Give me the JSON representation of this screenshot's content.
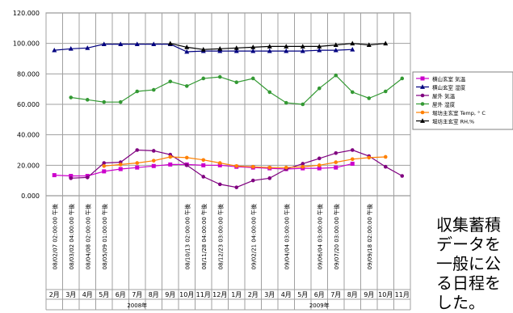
{
  "chart_data": {
    "type": "line",
    "ylim": [
      0,
      120
    ],
    "y_ticks": [
      "0.000",
      "20.000",
      "40.000",
      "60.000",
      "80.000",
      "100.000",
      "120.000"
    ],
    "grid": true,
    "legend_position": "right",
    "months": [
      "2月",
      "3月",
      "4月",
      "5月",
      "6月",
      "7月",
      "8月",
      "9月",
      "10月",
      "11月",
      "12月",
      "1月",
      "2月",
      "3月",
      "4月",
      "5月",
      "6月",
      "7月",
      "8月",
      "9月",
      "10月",
      "11月"
    ],
    "years": [
      {
        "label": "2008年",
        "start_index": 0,
        "end_index": 10
      },
      {
        "label": "2009年",
        "start_index": 11,
        "end_index": 21
      }
    ],
    "date_labels": [
      {
        "index": 0,
        "text": "08/02/07 02:00:00 午後"
      },
      {
        "index": 1,
        "text": "08/03/02 04:00:00 午後"
      },
      {
        "index": 2,
        "text": "08/04/08 02:00:00 午後"
      },
      {
        "index": 3,
        "text": "08/05/09 01:00:00 午後"
      },
      {
        "index": 8,
        "text": "08/10/13 02:00:00 午後"
      },
      {
        "index": 9,
        "text": "08/11/28 04:00:00 午後"
      },
      {
        "index": 10,
        "text": "08/12/23 03:00:00 午後"
      },
      {
        "index": 12,
        "text": "09/02/21 04:00:00 午後"
      },
      {
        "index": 14,
        "text": "09/04/04 03:00:00 午後"
      },
      {
        "index": 16,
        "text": "09/06/04 03:00:00 午後"
      },
      {
        "index": 17,
        "text": "09/07/20 03:00:00 午後"
      },
      {
        "index": 19,
        "text": "09/09/18 02:00:00 午後"
      }
    ],
    "series": [
      {
        "name": "横山玄室 気温",
        "color": "#cc00cc",
        "marker": "square",
        "values": [
          13.5,
          13.0,
          13.0,
          16.0,
          17.5,
          18.5,
          19.5,
          20.5,
          20.5,
          20.0,
          20.0,
          19.0,
          18.5,
          18.0,
          17.5,
          18.0,
          18.0,
          18.5,
          21.0,
          null,
          null,
          null
        ]
      },
      {
        "name": "横山玄室 湿度",
        "color": "#000080",
        "marker": "triangle",
        "values": [
          95.5,
          96.5,
          97.0,
          99.5,
          99.5,
          99.5,
          99.5,
          99.5,
          94.5,
          95.0,
          95.0,
          95.0,
          95.0,
          95.0,
          95.0,
          95.0,
          95.5,
          95.5,
          96.0,
          null,
          null,
          null
        ]
      },
      {
        "name": "屋外 気温",
        "color": "#800080",
        "marker": "circle",
        "values": [
          null,
          11.5,
          12.0,
          21.5,
          22.0,
          30.0,
          29.5,
          27.0,
          20.0,
          12.5,
          7.5,
          5.5,
          10.0,
          11.5,
          17.5,
          21.0,
          24.5,
          28.0,
          30.0,
          26.0,
          19.0,
          13.0
        ]
      },
      {
        "name": "屋外 湿度",
        "color": "#339933",
        "marker": "circle",
        "values": [
          null,
          64.5,
          63.0,
          61.5,
          61.5,
          68.5,
          69.5,
          75.0,
          72.0,
          77.0,
          78.0,
          74.5,
          77.0,
          68.0,
          61.0,
          60.0,
          70.5,
          79.0,
          68.0,
          64.0,
          68.5,
          77.0
        ]
      },
      {
        "name": "堀坊主玄室 Temp, ° C",
        "color": "#ff8000",
        "marker": "circle",
        "values": [
          null,
          null,
          null,
          19.5,
          20.5,
          21.5,
          23.0,
          25.5,
          25.0,
          23.5,
          21.5,
          19.5,
          19.0,
          18.5,
          18.5,
          19.0,
          20.0,
          22.0,
          24.0,
          25.0,
          25.5,
          null
        ]
      },
      {
        "name": "堀坊主玄室 RH,%",
        "color": "#000000",
        "marker": "triangle",
        "values": [
          null,
          null,
          null,
          null,
          null,
          null,
          null,
          100.0,
          97.5,
          96.0,
          96.5,
          97.0,
          97.5,
          98.0,
          98.0,
          98.0,
          98.0,
          99.0,
          100.0,
          99.0,
          100.0,
          null
        ]
      }
    ]
  },
  "note_lines": [
    "収集蓄積",
    "データを",
    "一般に公",
    "る日程を",
    "した。"
  ]
}
